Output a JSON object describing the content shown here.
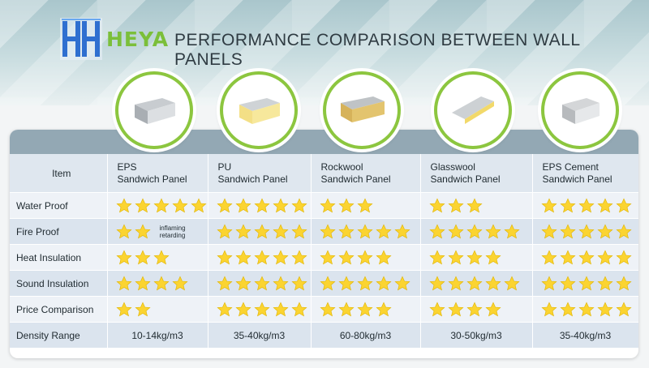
{
  "header": {
    "brand": "HEYA",
    "title": "PERFORMANCE COMPARISON BETWEEN WALL PANELS"
  },
  "colors": {
    "star": "#fbd431",
    "accent": "#8cc63f",
    "brand": "#7bbf3a"
  },
  "table": {
    "item_label": "Item",
    "panels": [
      {
        "line1": "EPS",
        "line2": "Sandwich Panel",
        "icon": "eps-panel"
      },
      {
        "line1": "PU",
        "line2": "Sandwich Panel",
        "icon": "pu-panel"
      },
      {
        "line1": "Rockwool",
        "line2": "Sandwich Panel",
        "icon": "rockwool-panel"
      },
      {
        "line1": "Glasswool",
        "line2": "Sandwich Panel",
        "icon": "glasswool-panel"
      },
      {
        "line1": "EPS Cement",
        "line2": "Sandwich Panel",
        "icon": "eps-cement-panel"
      }
    ],
    "rows": [
      {
        "label": "Water Proof",
        "ratings": [
          5,
          5,
          3,
          3,
          5
        ]
      },
      {
        "label": "Fire Proof",
        "ratings": [
          2,
          5,
          5,
          5,
          5
        ],
        "note_line1": "inflaming",
        "note_line2": "retarding"
      },
      {
        "label": "Heat Insulation",
        "ratings": [
          3,
          5,
          4,
          4,
          5
        ]
      },
      {
        "label": "Sound Insulation",
        "ratings": [
          4,
          5,
          5,
          5,
          5
        ]
      },
      {
        "label": "Price Comparison",
        "ratings": [
          2,
          5,
          4,
          4,
          5
        ]
      }
    ],
    "density": {
      "label": "Density Range",
      "values": [
        "10-14kg/m3",
        "35-40kg/m3",
        "60-80kg/m3",
        "30-50kg/m3",
        "35-40kg/m3"
      ]
    }
  }
}
